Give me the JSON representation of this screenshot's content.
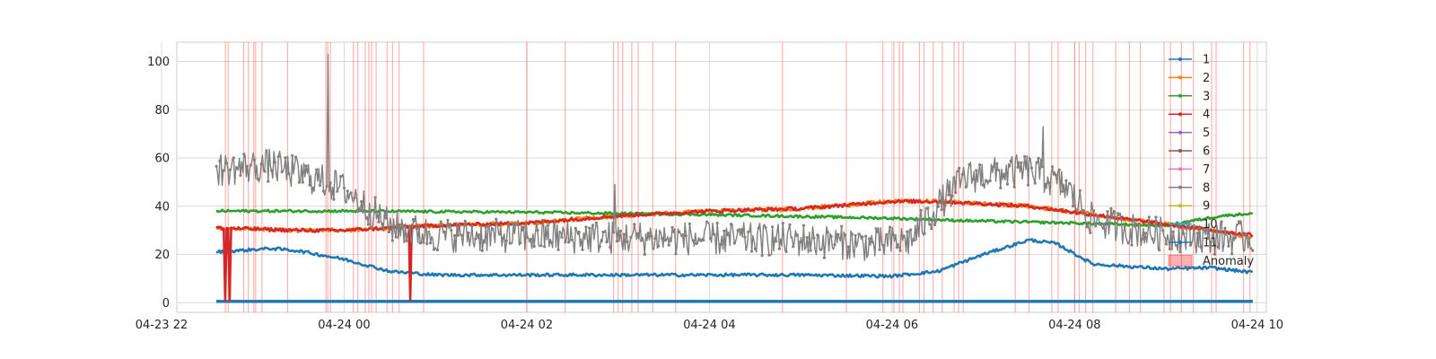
{
  "chart_data": {
    "type": "line",
    "title": "",
    "xlabel": "",
    "ylabel": "",
    "grid": true,
    "legend_position": "upper-right",
    "x_time_range_hours": [
      -1.833,
      10.1
    ],
    "x_data_range_hours": [
      -1.4,
      9.95
    ],
    "ylim": [
      -4,
      108
    ],
    "x_ticks": [
      {
        "hours": -2,
        "label": "04-23 22"
      },
      {
        "hours": 0,
        "label": "04-24 00"
      },
      {
        "hours": 2,
        "label": "04-24 02"
      },
      {
        "hours": 4,
        "label": "04-24 04"
      },
      {
        "hours": 6,
        "label": "04-24 06"
      },
      {
        "hours": 8,
        "label": "04-24 08"
      },
      {
        "hours": 10,
        "label": "04-24 10"
      }
    ],
    "y_ticks": [
      {
        "value": 0,
        "label": "0"
      },
      {
        "value": 20,
        "label": "20"
      },
      {
        "value": 40,
        "label": "40"
      },
      {
        "value": 60,
        "label": "60"
      },
      {
        "value": 80,
        "label": "80"
      },
      {
        "value": 100,
        "label": "100"
      }
    ],
    "series": [
      {
        "name": "1",
        "color": "#1f77b4",
        "noise": 0.6,
        "points": [
          [
            -1.4,
            21
          ],
          [
            -0.8,
            22.5
          ],
          [
            -0.5,
            21.5
          ],
          [
            0,
            18
          ],
          [
            0.5,
            13
          ],
          [
            1,
            11.5
          ],
          [
            3,
            11.5
          ],
          [
            5,
            11.5
          ],
          [
            6,
            11
          ],
          [
            6.5,
            13
          ],
          [
            7.0,
            20
          ],
          [
            7.5,
            26
          ],
          [
            7.8,
            24.5
          ],
          [
            8.2,
            16
          ],
          [
            9,
            14
          ],
          [
            9.5,
            14.5
          ],
          [
            9.95,
            12.5
          ]
        ]
      },
      {
        "name": "2",
        "color": "#ff7f0e",
        "noise": 0.8,
        "points": [
          [
            -1.4,
            31
          ],
          [
            -0.5,
            30
          ],
          [
            0,
            30
          ],
          [
            1,
            32
          ],
          [
            2,
            33
          ],
          [
            3,
            36
          ],
          [
            4,
            38
          ],
          [
            5,
            39
          ],
          [
            6,
            42
          ],
          [
            6.5,
            42
          ],
          [
            7,
            41
          ],
          [
            7.5,
            40
          ],
          [
            8.5,
            35
          ],
          [
            9.5,
            30
          ],
          [
            9.95,
            27
          ]
        ]
      },
      {
        "name": "3",
        "color": "#2ca02c",
        "noise": 0.5,
        "points": [
          [
            -1.4,
            38
          ],
          [
            0,
            38
          ],
          [
            2,
            37.5
          ],
          [
            4,
            36.5
          ],
          [
            6,
            35
          ],
          [
            6.8,
            34
          ],
          [
            8,
            33
          ],
          [
            9,
            32
          ],
          [
            9.6,
            36
          ],
          [
            9.95,
            37
          ]
        ]
      },
      {
        "name": "4",
        "color": "#d62728",
        "noise": 0.7,
        "points": [
          [
            -1.4,
            31
          ],
          [
            -0.5,
            30
          ],
          [
            0,
            30
          ],
          [
            1,
            32
          ],
          [
            2,
            33
          ],
          [
            3,
            36
          ],
          [
            4,
            38
          ],
          [
            5,
            39
          ],
          [
            6,
            42
          ],
          [
            6.5,
            42
          ],
          [
            7,
            41
          ],
          [
            7.5,
            40
          ],
          [
            8.5,
            35
          ],
          [
            9.5,
            30
          ],
          [
            9.95,
            28
          ]
        ]
      },
      {
        "name": "5",
        "color": "#9467bd",
        "noise": 0,
        "points": [
          [
            -1.4,
            0.5
          ],
          [
            9.95,
            0.5
          ]
        ]
      },
      {
        "name": "6",
        "color": "#8c564b",
        "noise": 0,
        "points": [
          [
            -1.4,
            0.5
          ],
          [
            9.95,
            0.5
          ]
        ]
      },
      {
        "name": "7",
        "color": "#e377c2",
        "noise": 0,
        "points": [
          [
            -1.4,
            0.5
          ],
          [
            9.95,
            0.5
          ]
        ]
      },
      {
        "name": "8",
        "color": "#7f7f7f",
        "noise": 7,
        "points": [
          [
            -1.4,
            55
          ],
          [
            -0.8,
            57
          ],
          [
            -0.2,
            50
          ],
          [
            0,
            47
          ],
          [
            0.5,
            32
          ],
          [
            1,
            28
          ],
          [
            3,
            27
          ],
          [
            5,
            26
          ],
          [
            5.8,
            24
          ],
          [
            6.2,
            26
          ],
          [
            6.5,
            40
          ],
          [
            6.8,
            52
          ],
          [
            7.5,
            55
          ],
          [
            7.9,
            48
          ],
          [
            8.2,
            34
          ],
          [
            8.8,
            29
          ],
          [
            9.5,
            27
          ],
          [
            9.95,
            27
          ]
        ]
      },
      {
        "name": "9",
        "color": "#bcbd22",
        "noise": 0,
        "points": [
          [
            -1.4,
            0.5
          ],
          [
            9.95,
            0.5
          ]
        ]
      },
      {
        "name": "10",
        "color": "#17becf",
        "noise": 0,
        "points": [
          [
            -1.4,
            0.5
          ],
          [
            9.95,
            0.5
          ]
        ]
      },
      {
        "name": "11",
        "color": "#1f77b4",
        "noise": 0,
        "points": [
          [
            -1.4,
            0.5
          ],
          [
            9.95,
            0.5
          ]
        ]
      }
    ],
    "spikes": [
      {
        "series": "8",
        "hours": -0.18,
        "value": 103
      },
      {
        "series": "8",
        "hours": 2.96,
        "value": 49
      },
      {
        "series": "8",
        "hours": 7.66,
        "value": 73
      },
      {
        "series": "4",
        "hours": -1.3,
        "value": 1
      },
      {
        "series": "4",
        "hours": -1.25,
        "value": 1
      },
      {
        "series": "4",
        "hours": 0.72,
        "value": 1
      }
    ],
    "anomaly_label": "Anomaly",
    "anomaly_color": "#ff0000",
    "anomaly_hours": [
      -1.3,
      -1.27,
      -1.1,
      -1.05,
      -0.99,
      -0.97,
      -0.9,
      -0.62,
      -0.2,
      -0.18,
      -0.15,
      0.1,
      0.15,
      0.23,
      0.27,
      0.3,
      0.35,
      0.47,
      0.53,
      0.6,
      0.87,
      2.0,
      2.42,
      2.95,
      3.0,
      3.05,
      3.15,
      3.22,
      3.38,
      3.63,
      4.8,
      5.5,
      5.9,
      6.02,
      6.08,
      6.12,
      6.3,
      6.35,
      6.45,
      6.55,
      6.68,
      6.73,
      6.78,
      7.35,
      7.5,
      7.75,
      7.82,
      8.0,
      8.05,
      8.12,
      8.2,
      8.45,
      8.6,
      8.72,
      8.98,
      9.05,
      9.17,
      9.3,
      9.5,
      9.55,
      9.85,
      9.92
    ]
  }
}
